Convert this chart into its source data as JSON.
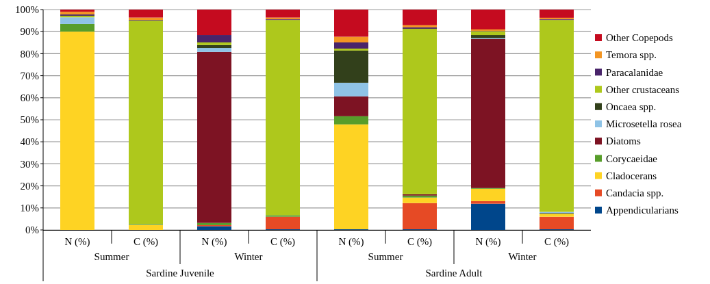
{
  "chart_data": {
    "type": "bar",
    "stacked": true,
    "categories": [
      "N (%)",
      "C (%)",
      "N (%)",
      "C (%)",
      "N (%)",
      "C (%)",
      "N (%)",
      "C (%)"
    ],
    "annotations": [
      "Summer",
      "Winter",
      "Summer",
      "Winter",
      "Sardine Juvenile",
      "Sardine Adult"
    ],
    "ylim": [
      0,
      100
    ],
    "yticks": [
      {
        "value": 0,
        "label": "0%"
      },
      {
        "value": 10,
        "label": "10%"
      },
      {
        "value": 20,
        "label": "20%"
      },
      {
        "value": 30,
        "label": "30%"
      },
      {
        "value": 40,
        "label": "40%"
      },
      {
        "value": 50,
        "label": "50%"
      },
      {
        "value": 60,
        "label": "60%"
      },
      {
        "value": 70,
        "label": "70%"
      },
      {
        "value": 80,
        "label": "80%"
      },
      {
        "value": 90,
        "label": "90%"
      },
      {
        "value": 100,
        "label": "100%"
      }
    ],
    "grid": "y",
    "legend": "right",
    "series": [
      {
        "name": "Appendicularians",
        "color": "#00468b",
        "values": [
          0,
          0,
          1.7,
          0.3,
          0.3,
          0.3,
          11.9,
          0.3
        ]
      },
      {
        "name": "Candacia spp.",
        "color": "#e64a25",
        "values": [
          0,
          0,
          0.5,
          5.7,
          0,
          11.9,
          1.2,
          5.7
        ]
      },
      {
        "name": "Cladocerans",
        "color": "#fed323",
        "values": [
          90,
          2.3,
          0,
          0,
          47.6,
          2.5,
          5.6,
          1.2
        ]
      },
      {
        "name": "Corycaeidae",
        "color": "#579d2a",
        "values": [
          3.5,
          0.4,
          1,
          0.7,
          3.7,
          0.9,
          0.3,
          0.3
        ]
      },
      {
        "name": "Diatoms",
        "color": "#7d1323",
        "values": [
          0,
          0,
          77.6,
          0,
          9,
          0.6,
          67.7,
          0.2
        ]
      },
      {
        "name": "Microsetella rosea",
        "color": "#8fc3e6",
        "values": [
          3,
          0,
          1.8,
          0,
          6.2,
          0,
          0.3,
          0.5
        ]
      },
      {
        "name": "Oncaea spp.",
        "color": "#32401b",
        "values": [
          0,
          0,
          1.3,
          0,
          14.6,
          0,
          1.5,
          0
        ]
      },
      {
        "name": "Other crustaceans",
        "color": "#aec81c",
        "values": [
          0.7,
          92.3,
          1.2,
          88.6,
          0.9,
          75.1,
          1.6,
          87.1
        ]
      },
      {
        "name": "Paracalanidae",
        "color": "#49246a",
        "values": [
          0.6,
          0.3,
          3.4,
          0.3,
          2.8,
          0.6,
          0.2,
          0.3
        ]
      },
      {
        "name": "Temora spp.",
        "color": "#f39523",
        "values": [
          1.2,
          1.1,
          0,
          0.8,
          2.6,
          1,
          0.7,
          0.7
        ]
      },
      {
        "name": "Other Copepods",
        "color": "#c50b1f",
        "values": [
          1,
          3.6,
          11.5,
          3.6,
          12.3,
          7.1,
          9,
          3.7
        ]
      }
    ]
  }
}
